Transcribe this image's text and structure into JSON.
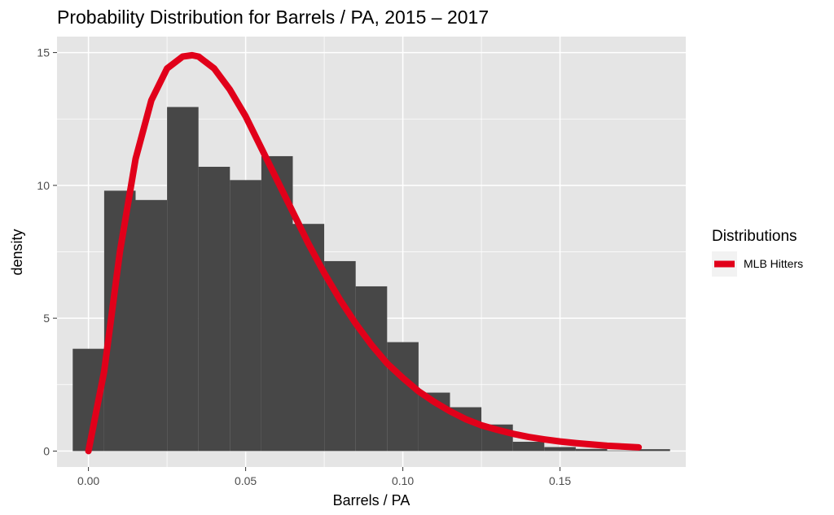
{
  "chart_data": {
    "type": "bar",
    "title": "Probability Distribution for Barrels / PA, 2015 – 2017",
    "xlabel": "Barrels / PA",
    "ylabel": "density",
    "xlim": [
      -0.01,
      0.19
    ],
    "ylim": [
      -0.6,
      15.6
    ],
    "x_ticks": [
      0,
      0.05,
      0.1,
      0.15
    ],
    "x_tick_labels": [
      "0.00",
      "0.05",
      "0.10",
      "0.15"
    ],
    "y_ticks": [
      0,
      5,
      10,
      15
    ],
    "y_tick_labels": [
      "0",
      "5",
      "10",
      "15"
    ],
    "grid": true,
    "bin_width": 0.01,
    "bin_starts": [
      -0.005,
      0.005,
      0.015,
      0.025,
      0.035,
      0.045,
      0.055,
      0.065,
      0.075,
      0.085,
      0.095,
      0.105,
      0.115,
      0.125,
      0.135,
      0.145,
      0.155,
      0.165,
      0.175
    ],
    "density": [
      3.85,
      9.8,
      9.45,
      12.95,
      10.7,
      10.2,
      11.1,
      8.55,
      7.15,
      6.2,
      4.1,
      2.2,
      1.65,
      1.0,
      0.35,
      0.15,
      0.08,
      0.02,
      0.07
    ],
    "bar_color": "#474747",
    "series": [
      {
        "name": "MLB Hitters",
        "type": "line",
        "color": "#e1001a",
        "x": [
          0,
          0.005,
          0.01,
          0.015,
          0.02,
          0.025,
          0.03,
          0.033,
          0.035,
          0.04,
          0.045,
          0.05,
          0.055,
          0.06,
          0.065,
          0.07,
          0.075,
          0.08,
          0.085,
          0.09,
          0.095,
          0.1,
          0.105,
          0.11,
          0.115,
          0.12,
          0.125,
          0.13,
          0.135,
          0.14,
          0.145,
          0.15,
          0.155,
          0.16,
          0.165,
          0.17,
          0.175
        ],
        "y": [
          0,
          3.0,
          7.5,
          11.0,
          13.2,
          14.4,
          14.85,
          14.9,
          14.85,
          14.4,
          13.6,
          12.6,
          11.4,
          10.2,
          9.0,
          7.8,
          6.7,
          5.7,
          4.8,
          4.0,
          3.3,
          2.75,
          2.25,
          1.85,
          1.5,
          1.2,
          0.97,
          0.8,
          0.65,
          0.53,
          0.44,
          0.36,
          0.3,
          0.25,
          0.2,
          0.17,
          0.14
        ]
      }
    ],
    "legend": {
      "title": "Distributions",
      "placement": "right"
    },
    "panel_color": "#e5e5e5",
    "grid_color": "#ffffff"
  }
}
